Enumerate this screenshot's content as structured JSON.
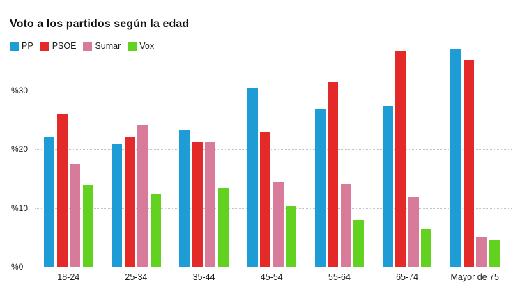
{
  "title": "Voto a los partidos según la edad",
  "colors": {
    "pp": "#1e9cd6",
    "psoe": "#e32a28",
    "sumar": "#d87b9b",
    "vox": "#63d120",
    "grid": "#c4c4c4",
    "text": "#1a1a1a",
    "title_text": "#111111"
  },
  "legend": {
    "items": [
      {
        "label": "PP",
        "color": "#1e9cd6"
      },
      {
        "label": "PSOE",
        "color": "#e32a28"
      },
      {
        "label": "Sumar",
        "color": "#d87b9b"
      },
      {
        "label": "Vox",
        "color": "#63d120"
      }
    ]
  },
  "chart_data": {
    "type": "bar",
    "title": "Voto a los partidos según la edad",
    "xlabel": "",
    "ylabel": "",
    "categories": [
      "18-24",
      "25-34",
      "35-44",
      "45-54",
      "55-64",
      "65-74",
      "Mayor de 75"
    ],
    "series": [
      {
        "name": "PP",
        "color": "#1e9cd6",
        "values": [
          22.0,
          20.8,
          23.3,
          30.4,
          26.8,
          27.3,
          36.9
        ]
      },
      {
        "name": "PSOE",
        "color": "#e32a28",
        "values": [
          25.9,
          22.0,
          21.2,
          22.8,
          31.4,
          36.7,
          35.1
        ]
      },
      {
        "name": "Sumar",
        "color": "#d87b9b",
        "values": [
          17.5,
          24.0,
          21.2,
          14.3,
          14.1,
          11.8,
          5.0
        ]
      },
      {
        "name": "Vox",
        "color": "#63d120",
        "values": [
          14.0,
          12.3,
          13.4,
          10.3,
          7.9,
          6.4,
          4.6
        ]
      }
    ],
    "yticks": [
      {
        "value": 0,
        "label": "%0"
      },
      {
        "value": 10,
        "label": "%10"
      },
      {
        "value": 20,
        "label": "%20"
      },
      {
        "value": 30,
        "label": "%30"
      }
    ],
    "ylim": [
      0,
      37.5
    ],
    "grid": "horizontal-dotted",
    "legend_position": "top-left"
  }
}
